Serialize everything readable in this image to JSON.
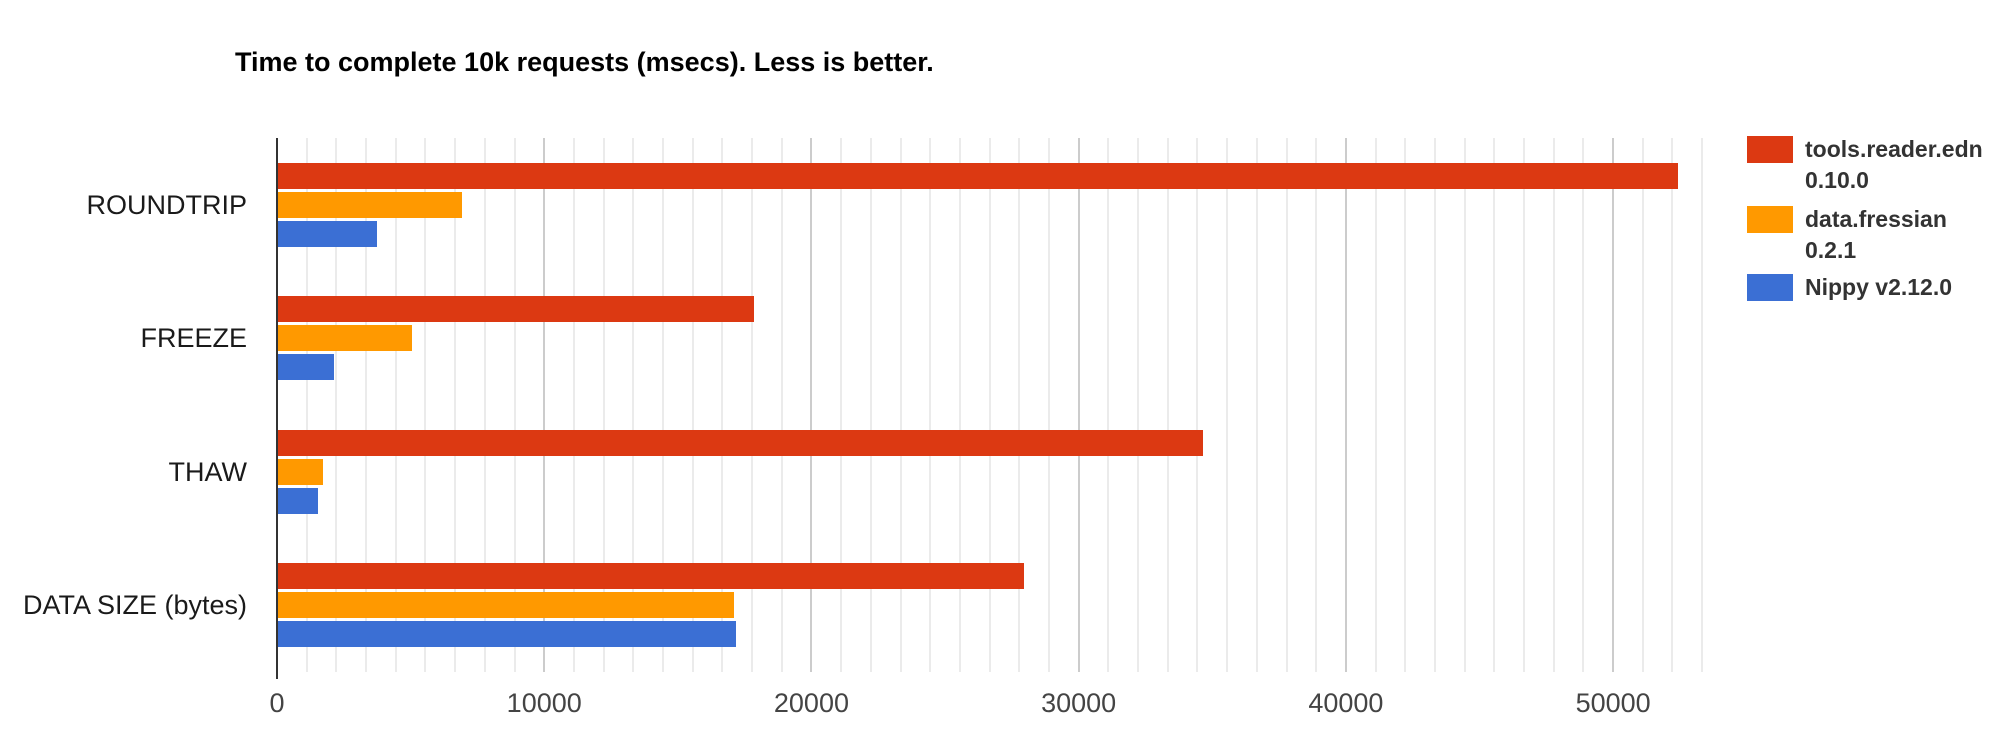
{
  "chart_data": {
    "type": "bar",
    "orientation": "horizontal",
    "title": "Time to complete 10k requests (msecs). Less is better.",
    "categories": [
      "ROUNDTRIP",
      "FREEZE",
      "THAW",
      "DATA SIZE (bytes)"
    ],
    "series": [
      {
        "name": "tools.reader.edn 0.10.0",
        "legend_lines": [
          "tools.reader.edn",
          "0.10.0"
        ],
        "color": "#DC3912",
        "values": [
          52400,
          17800,
          34600,
          27900
        ]
      },
      {
        "name": "data.fressian 0.2.1",
        "legend_lines": [
          "data.fressian",
          "0.2.1"
        ],
        "color": "#FF9900",
        "values": [
          6900,
          5000,
          1700,
          17050
        ]
      },
      {
        "name": "Nippy v2.12.0",
        "legend_lines": [
          "Nippy v2.12.0"
        ],
        "color": "#3B6FD4",
        "values": [
          3700,
          2100,
          1500,
          17150
        ]
      }
    ],
    "x_ticks": [
      0,
      10000,
      20000,
      30000,
      40000,
      50000
    ],
    "xlim": [
      0,
      54000
    ],
    "grid": true,
    "minor_gridlines_per_major": 9,
    "legend_position": "right",
    "xlabel": "",
    "ylabel": ""
  },
  "colors": {
    "axis": "#333333",
    "major_gridline": "#cccccc",
    "minor_gridline": "#ebebeb",
    "tick_label": "#444444",
    "category_label": "#1a1a1a",
    "legend_text": "#333333",
    "title_text": "#000000",
    "background": "#ffffff"
  }
}
